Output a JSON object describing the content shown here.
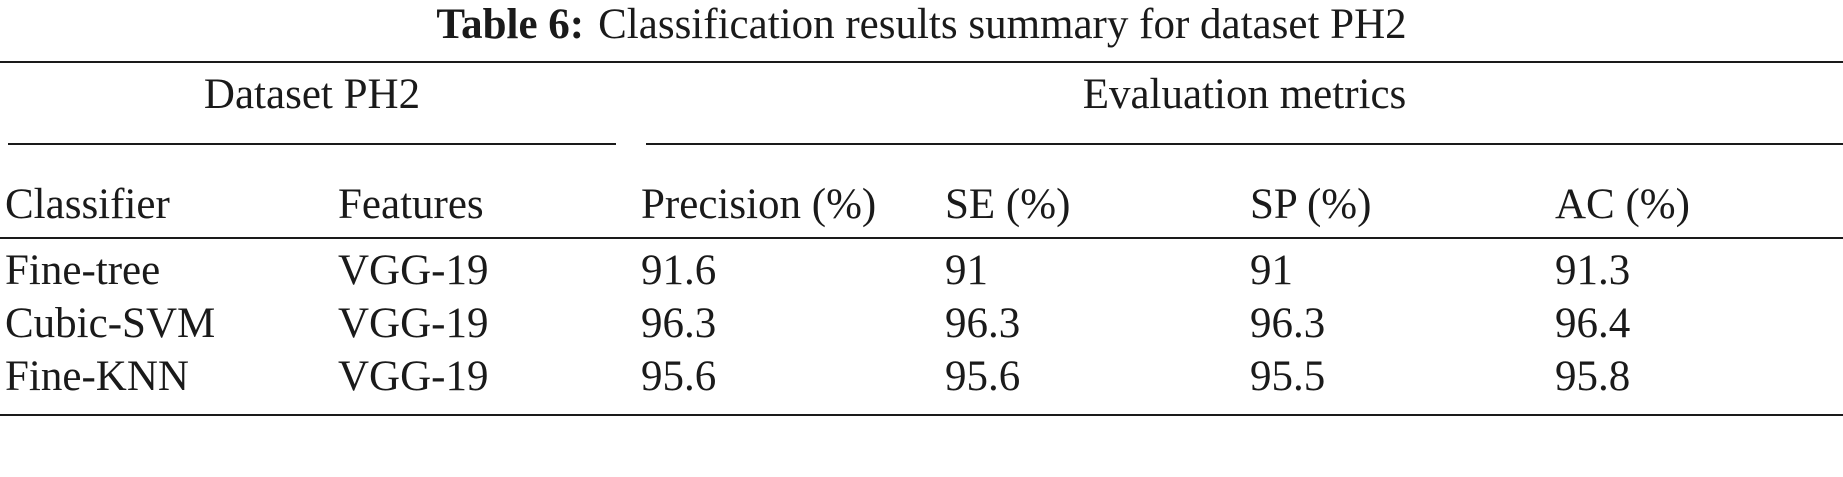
{
  "caption": {
    "label": "Table 6:",
    "text": "Classification results summary for dataset PH2"
  },
  "group_headers": {
    "left": "Dataset PH2",
    "right": "Evaluation metrics"
  },
  "columns": [
    "Classifier",
    "Features",
    "Precision (%)",
    "SE (%)",
    "SP (%)",
    "AC (%)"
  ],
  "rows": [
    [
      "Fine-tree",
      "VGG-19",
      "91.6",
      "91",
      "91",
      "91.3"
    ],
    [
      "Cubic-SVM",
      "VGG-19",
      "96.3",
      "96.3",
      "96.3",
      "96.4"
    ],
    [
      "Fine-KNN",
      "VGG-19",
      "95.6",
      "95.6",
      "95.5",
      "95.8"
    ]
  ]
}
